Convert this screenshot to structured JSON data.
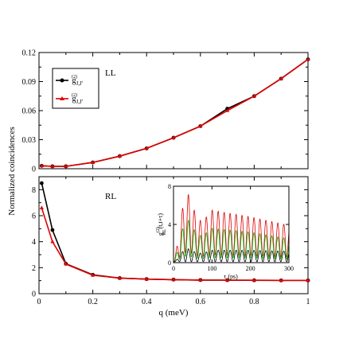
{
  "chart_data": [
    {
      "type": "line",
      "panel": "LL",
      "panel_label": "LL",
      "xlabel": "",
      "ylabel": "Normalized coincidences",
      "xlim": [
        0,
        1
      ],
      "ylim": [
        0,
        0.12
      ],
      "xticks": [
        0,
        0.2,
        0.4,
        0.6,
        0.8,
        1
      ],
      "yticks": [
        0,
        0.03,
        0.06,
        0.09,
        0.12
      ],
      "ytick_labels": [
        "0",
        "0.03",
        "0.06",
        "0.09",
        "0.12"
      ],
      "legend_placement": "top-left",
      "legend": [
        {
          "main": "g",
          "sup": "(2)",
          "sub": "J,J'"
        },
        {
          "main": "g",
          "sup": "(2)",
          "sub": "J,J'"
        }
      ],
      "series": [
        {
          "color": "#000000",
          "marker": "circle",
          "x": [
            0.01,
            0.05,
            0.1,
            0.2,
            0.3,
            0.4,
            0.5,
            0.6,
            0.7,
            0.8,
            0.9,
            1.0
          ],
          "y": [
            0.003,
            0.0025,
            0.0025,
            0.0065,
            0.013,
            0.021,
            0.032,
            0.044,
            0.062,
            0.075,
            0.093,
            0.113
          ]
        },
        {
          "color": "#e00000",
          "marker": "triangle",
          "x": [
            0.01,
            0.05,
            0.1,
            0.2,
            0.3,
            0.4,
            0.5,
            0.6,
            0.7,
            0.8,
            0.9,
            1.0
          ],
          "y": [
            0.003,
            0.0025,
            0.0025,
            0.0065,
            0.013,
            0.021,
            0.032,
            0.044,
            0.06,
            0.075,
            0.093,
            0.113
          ]
        }
      ]
    },
    {
      "type": "line",
      "panel": "RL",
      "panel_label": "RL",
      "xlabel": "q (meV)",
      "ylabel": "Normalized coincidences",
      "xlim": [
        0,
        1
      ],
      "ylim": [
        0,
        9
      ],
      "xticks": [
        0,
        0.2,
        0.4,
        0.6,
        0.8,
        1
      ],
      "xtick_labels": [
        "0",
        "0.2",
        "0.4",
        "0.6",
        "0.8",
        "1"
      ],
      "yticks": [
        0,
        2,
        4,
        6,
        8
      ],
      "ytick_labels": [
        "0",
        "2",
        "4",
        "6",
        "8"
      ],
      "series": [
        {
          "color": "#000000",
          "marker": "circle",
          "x": [
            0.01,
            0.05,
            0.1,
            0.2,
            0.3,
            0.4,
            0.5,
            0.6,
            0.7,
            0.8,
            0.9,
            1.0
          ],
          "y": [
            8.5,
            4.9,
            2.3,
            1.45,
            1.2,
            1.12,
            1.08,
            1.05,
            1.04,
            1.03,
            1.02,
            1.02
          ]
        },
        {
          "color": "#e00000",
          "marker": "triangle",
          "x": [
            0.01,
            0.05,
            0.1,
            0.2,
            0.3,
            0.4,
            0.5,
            0.6,
            0.7,
            0.8,
            0.9,
            1.0
          ],
          "y": [
            6.6,
            4.0,
            2.28,
            1.42,
            1.2,
            1.12,
            1.08,
            1.05,
            1.04,
            1.03,
            1.02,
            1.02
          ]
        }
      ]
    },
    {
      "type": "line",
      "panel": "inset",
      "xlabel": "τ (ps)",
      "ylabel": {
        "main": "g",
        "sup": "(2)",
        "sub": "RL",
        "tail": "(t,t+τ)"
      },
      "xlim": [
        0,
        300
      ],
      "ylim": [
        0,
        8
      ],
      "xticks": [
        0,
        100,
        200,
        300
      ],
      "xtick_labels": [
        "0",
        "100",
        "200",
        "300"
      ],
      "yticks": [
        0,
        4,
        8
      ],
      "ytick_labels": [
        "0",
        "4",
        "8"
      ],
      "oscillation_period_ps": 15.5,
      "series": [
        {
          "color": "#e00000",
          "peaks": [
            [
              0,
              0.3
            ],
            [
              100,
              5.5
            ],
            [
              200,
              4.8
            ],
            [
              300,
              3.9
            ]
          ],
          "envelope_peak": 7.4
        },
        {
          "color": "#00b000",
          "peaks": [
            [
              0,
              0.2
            ],
            [
              100,
              3.6
            ],
            [
              200,
              3.2
            ],
            [
              300,
              2.5
            ]
          ],
          "envelope_peak": 4.6
        },
        {
          "color": "#000000",
          "peaks": [
            [
              0,
              0.05
            ],
            [
              100,
              1.3
            ],
            [
              200,
              1.3
            ],
            [
              300,
              1.2
            ]
          ],
          "envelope_peak": 1.5
        }
      ]
    }
  ]
}
